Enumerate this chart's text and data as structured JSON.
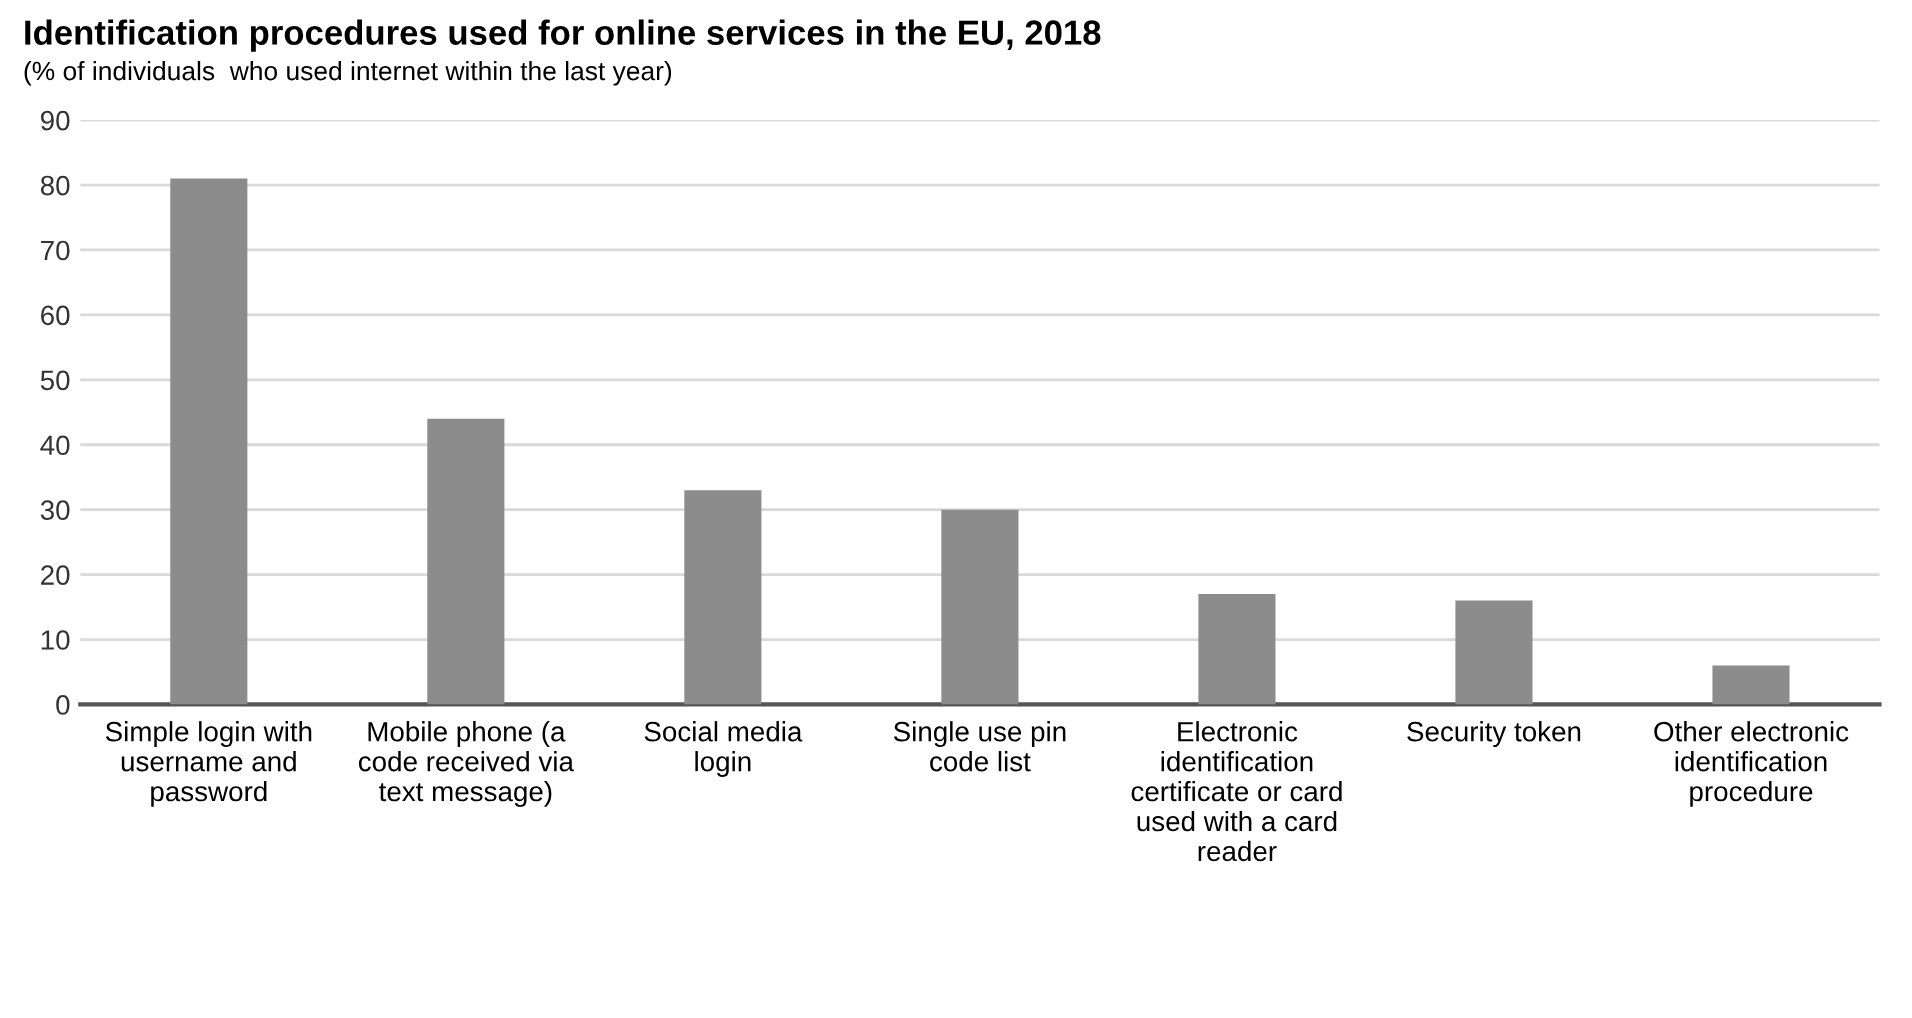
{
  "chart_data": {
    "type": "bar",
    "title": "Identification procedures used for online services in the EU, 2018",
    "subtitle": "(% of individuals  who used internet within the last year)",
    "categories": [
      "Simple login with\nusername and\npassword",
      "Mobile phone (a\ncode received via\ntext message)",
      "Social media\nlogin",
      "Single use pin\ncode list",
      "Electronic\nidentification\ncertificate or card\nused with a card\nreader",
      "Security token",
      "Other electronic\nidentification\nprocedure"
    ],
    "values": [
      81,
      44,
      33,
      30,
      17,
      16,
      6
    ],
    "color": "#8c8c8c",
    "ylim": [
      0,
      90
    ],
    "yticks": [
      0,
      10,
      20,
      30,
      40,
      50,
      60,
      70,
      80,
      90
    ],
    "grid": "y"
  }
}
